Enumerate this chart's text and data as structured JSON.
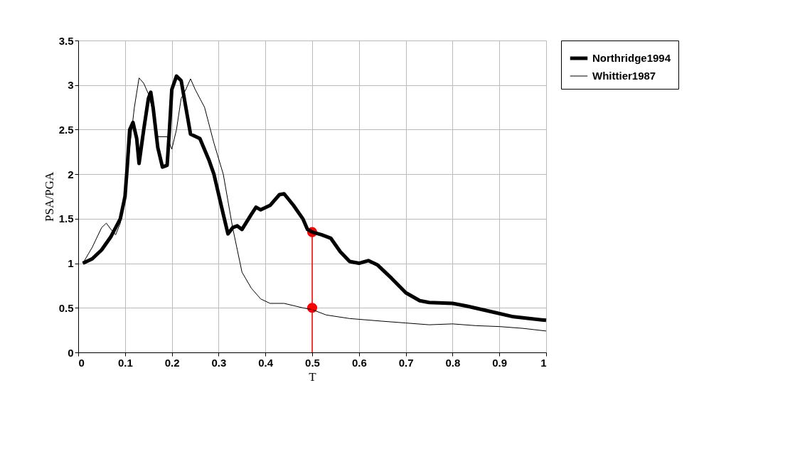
{
  "chart_data": {
    "type": "line",
    "xlabel": "T",
    "ylabel": "PSA/PGA",
    "xlim": [
      0,
      1
    ],
    "xticks": [
      0,
      0.1,
      0.2,
      0.3,
      0.4,
      0.5,
      0.6,
      0.7,
      0.8,
      0.9,
      1
    ],
    "ylim": [
      0,
      3.5
    ],
    "yticks": [
      0,
      0.5,
      1,
      1.5,
      2,
      2.5,
      3,
      3.5
    ],
    "grid": true,
    "legend": "right",
    "marker": "none",
    "line_style": "solid",
    "series": [
      {
        "name": "Northridge1994",
        "color": "#000000",
        "x": [
          0.01,
          0.03,
          0.05,
          0.07,
          0.09,
          0.1,
          0.105,
          0.11,
          0.117,
          0.125,
          0.13,
          0.14,
          0.15,
          0.155,
          0.16,
          0.17,
          0.18,
          0.19,
          0.195,
          0.2,
          0.21,
          0.22,
          0.23,
          0.24,
          0.26,
          0.28,
          0.29,
          0.31,
          0.32,
          0.33,
          0.34,
          0.35,
          0.37,
          0.38,
          0.39,
          0.41,
          0.43,
          0.44,
          0.46,
          0.48,
          0.49,
          0.5,
          0.52,
          0.54,
          0.56,
          0.58,
          0.6,
          0.62,
          0.64,
          0.67,
          0.7,
          0.73,
          0.75,
          0.8,
          0.83,
          0.88,
          0.93,
          1.0
        ],
        "values": [
          1.0,
          1.05,
          1.15,
          1.3,
          1.5,
          1.75,
          2.1,
          2.5,
          2.58,
          2.4,
          2.12,
          2.5,
          2.85,
          2.92,
          2.75,
          2.3,
          2.08,
          2.1,
          2.5,
          2.95,
          3.1,
          3.05,
          2.75,
          2.45,
          2.4,
          2.15,
          2.0,
          1.55,
          1.33,
          1.4,
          1.42,
          1.38,
          1.55,
          1.63,
          1.6,
          1.65,
          1.77,
          1.78,
          1.65,
          1.5,
          1.38,
          1.35,
          1.32,
          1.28,
          1.13,
          1.02,
          1.0,
          1.03,
          0.98,
          0.83,
          0.67,
          0.58,
          0.56,
          0.55,
          0.52,
          0.46,
          0.4,
          0.36
        ]
      },
      {
        "name": "Whittier1987",
        "color": "#000000",
        "x": [
          0.01,
          0.03,
          0.05,
          0.06,
          0.07,
          0.08,
          0.09,
          0.1,
          0.11,
          0.12,
          0.13,
          0.14,
          0.15,
          0.16,
          0.17,
          0.19,
          0.2,
          0.21,
          0.22,
          0.23,
          0.24,
          0.25,
          0.27,
          0.29,
          0.31,
          0.32,
          0.33,
          0.34,
          0.35,
          0.37,
          0.39,
          0.41,
          0.44,
          0.48,
          0.5,
          0.53,
          0.58,
          0.65,
          0.7,
          0.75,
          0.8,
          0.85,
          0.9,
          0.95,
          1.0
        ],
        "values": [
          1.0,
          1.18,
          1.4,
          1.45,
          1.38,
          1.32,
          1.45,
          1.75,
          2.3,
          2.75,
          3.08,
          3.02,
          2.9,
          2.7,
          2.42,
          2.42,
          2.28,
          2.5,
          2.85,
          2.95,
          3.07,
          2.95,
          2.75,
          2.35,
          2.0,
          1.7,
          1.4,
          1.15,
          0.9,
          0.72,
          0.6,
          0.55,
          0.55,
          0.5,
          0.48,
          0.42,
          0.38,
          0.35,
          0.33,
          0.31,
          0.32,
          0.3,
          0.29,
          0.27,
          0.24
        ]
      },
      {
        "type": "line",
        "color": "#ff0000",
        "x": [
          0.5,
          0.5
        ],
        "values": [
          0,
          1.3
        ]
      },
      {
        "type": "scatter",
        "color": "#ff0000",
        "marker": "circle",
        "x": [
          0.5,
          0.5
        ],
        "values": [
          1.35,
          0.5
        ]
      }
    ]
  }
}
